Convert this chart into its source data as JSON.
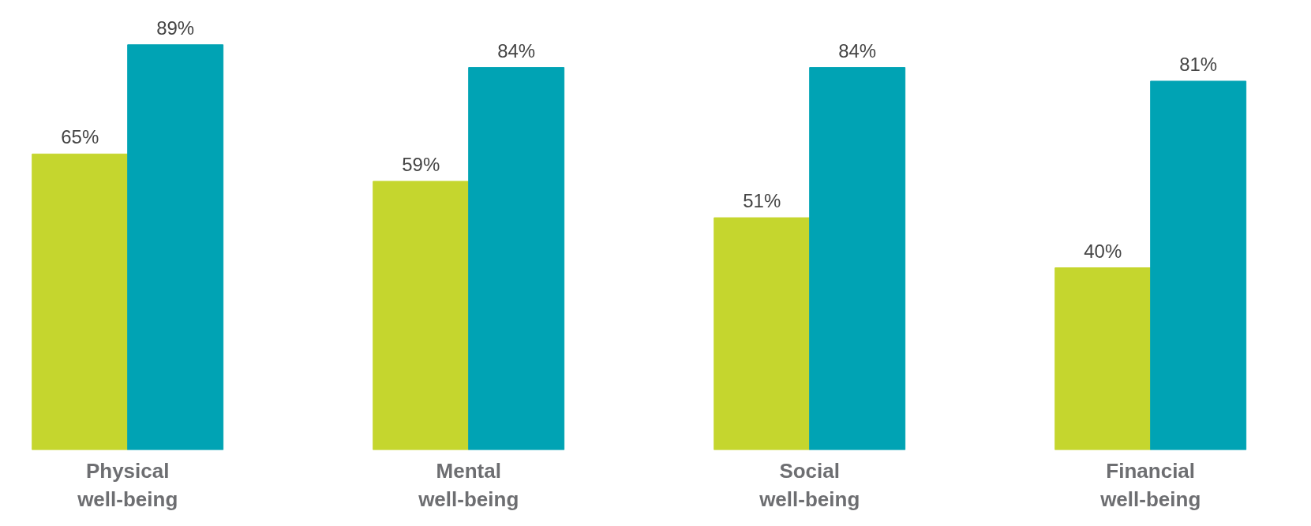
{
  "chart_data": {
    "type": "bar",
    "categories": [
      "Physical\nwell-being",
      "Mental\nwell-being",
      "Social\nwell-being",
      "Financial\nwell-being"
    ],
    "series": [
      {
        "color": "#c5d62e",
        "values": [
          65,
          59,
          51,
          40
        ],
        "value_labels": [
          "65%",
          "59%",
          "51%",
          "40%"
        ]
      },
      {
        "color": "#00a3b4",
        "values": [
          89,
          84,
          84,
          81
        ],
        "value_labels": [
          "89%",
          "84%",
          "84%",
          "81%"
        ]
      }
    ]
  }
}
